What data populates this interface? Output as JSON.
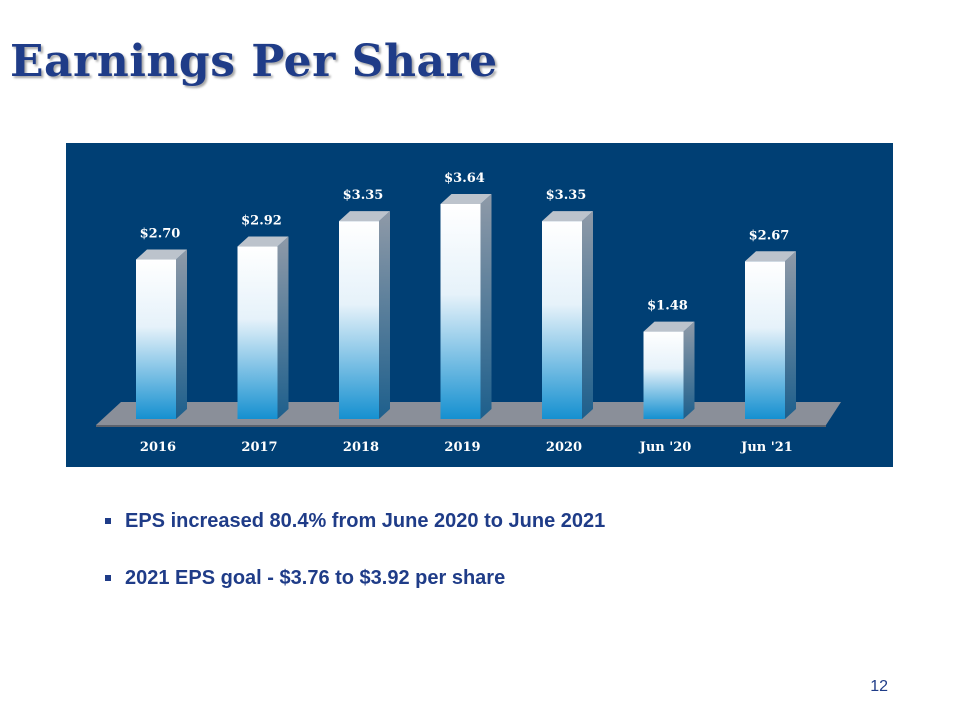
{
  "slide": {
    "title": "Earnings Per Share",
    "page_number": "12"
  },
  "bullets": [
    "EPS increased 80.4%  from June 2020 to June 2021",
    "2021 EPS goal - $3.76 to $3.92 per share"
  ],
  "colors": {
    "title": "#1f3c88",
    "panel_background": "#003f74",
    "bar_top": "#ffffff",
    "bar_bottom": "#1590d0",
    "floor": "#8a8f99",
    "text": "#1f3c88"
  },
  "chart_data": {
    "type": "bar",
    "style": "3d",
    "categories": [
      "2016",
      "2017",
      "2018",
      "2019",
      "2020",
      "Jun '20",
      "Jun '21"
    ],
    "values": [
      2.7,
      2.92,
      3.35,
      3.64,
      3.35,
      1.48,
      2.67
    ],
    "data_labels": [
      "$2.70",
      "$2.92",
      "$3.35",
      "$3.64",
      "$3.35",
      "$1.48",
      "$2.67"
    ],
    "title": "",
    "xlabel": "",
    "ylabel": "",
    "ylim": [
      0,
      3.64
    ],
    "grid": false,
    "legend": "none"
  }
}
